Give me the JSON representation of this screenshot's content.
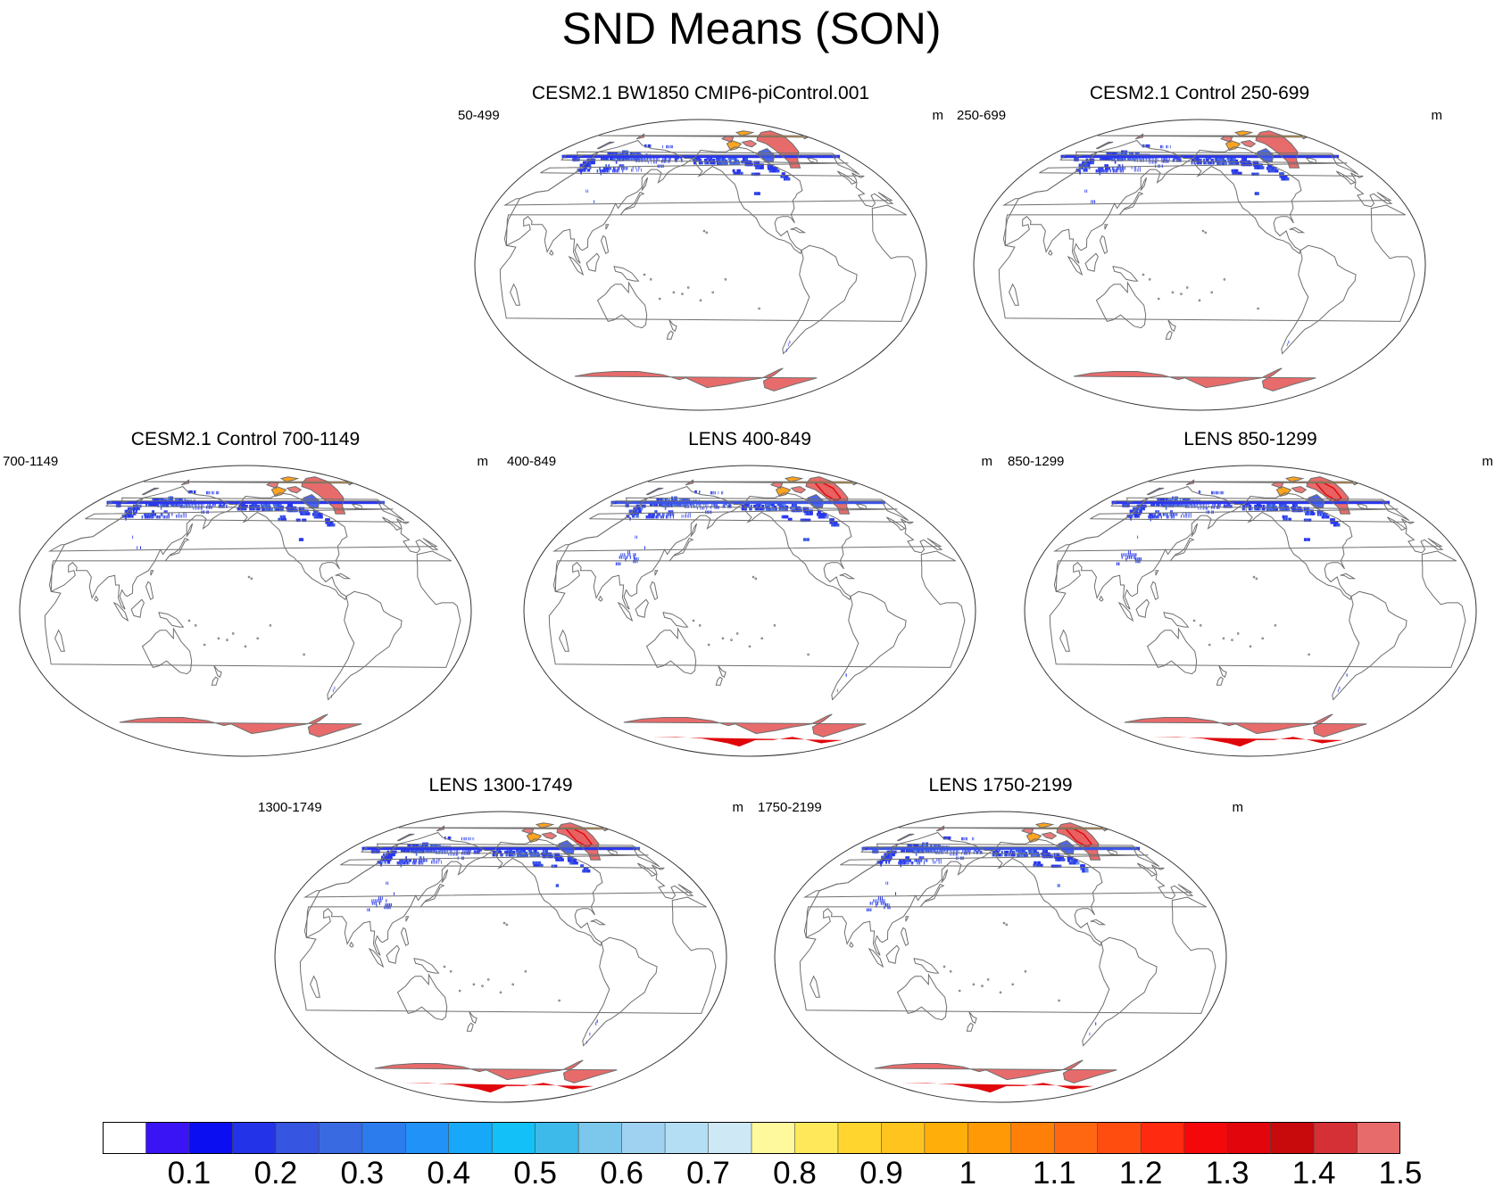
{
  "title": "SND Means (SON)",
  "panels": [
    {
      "title": "CESM2.1 BW1850 CMIP6-piControl.001",
      "left_label": "50-499",
      "right_label": "m",
      "intensity": 0
    },
    {
      "title": "CESM2.1 Control 250-699",
      "left_label": "250-699",
      "right_label": "m",
      "intensity": 0
    },
    {
      "title": "CESM2.1 Control 700-1149",
      "left_label": "700-1149",
      "right_label": "m",
      "intensity": 0
    },
    {
      "title": "LENS 400-849",
      "left_label": "400-849",
      "right_label": "m",
      "intensity": 1
    },
    {
      "title": "LENS 850-1299",
      "left_label": "850-1299",
      "right_label": "m",
      "intensity": 1
    },
    {
      "title": "LENS 1300-1749",
      "left_label": "1300-1749",
      "right_label": "m",
      "intensity": 1
    },
    {
      "title": "LENS 1750-2199",
      "left_label": "1750-2199",
      "right_label": "m",
      "intensity": 1
    }
  ],
  "colorbar": {
    "labels": [
      "0.1",
      "0.2",
      "0.3",
      "0.4",
      "0.5",
      "0.6",
      "0.7",
      "0.8",
      "0.9",
      "1",
      "1.1",
      "1.2",
      "1.3",
      "1.4",
      "1.5"
    ],
    "colors": [
      "#ffffff",
      "#3a14f5",
      "#0a0ef0",
      "#2333e8",
      "#3655e0",
      "#3a6ae2",
      "#2d7cee",
      "#2192f7",
      "#17a8fa",
      "#13c0f8",
      "#3ebaea",
      "#7cc7ec",
      "#9ed2f0",
      "#b4def4",
      "#cfe8f6",
      "#fff99e",
      "#ffe95a",
      "#ffd52e",
      "#ffc41e",
      "#ffae0a",
      "#ff9a06",
      "#ff8008",
      "#ff6810",
      "#ff4d10",
      "#ff2a0f",
      "#f5080a",
      "#e2050b",
      "#c80a0c",
      "#d43035",
      "#e86b6b"
    ]
  },
  "map_colors": {
    "snow_low": "#2a36ee",
    "snow_mid": "#3a55e6",
    "snow_high": "#4a70e8",
    "ice_sheet": "#e86b6b",
    "ice_core": "#e0070c",
    "ice_edge": "#ff9a06",
    "coast": "#6e6e6e"
  }
}
